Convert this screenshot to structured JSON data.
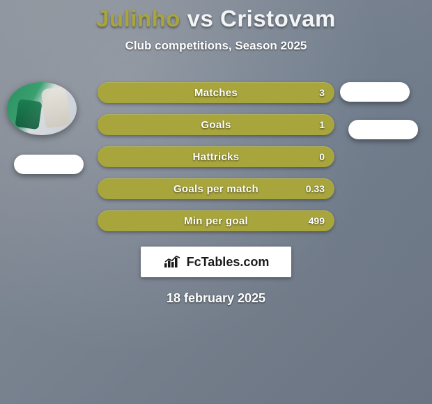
{
  "title": {
    "full": "Julinho vs Cristovam",
    "player1": "Julinho",
    "vs": " vs ",
    "player2": "Cristovam",
    "player1_color": "#a8a53c",
    "player2_color": "#f2f4f6",
    "fontsize": 33
  },
  "subtitle": "Club competitions, Season 2025",
  "stat_bar_color": "#a8a53c",
  "text_color": "#ffffff",
  "background_gradient": [
    "#8a9099",
    "#6a7482"
  ],
  "stats": [
    {
      "label": "Matches",
      "value": "3"
    },
    {
      "label": "Goals",
      "value": "1"
    },
    {
      "label": "Hattricks",
      "value": "0"
    },
    {
      "label": "Goals per match",
      "value": "0.33"
    },
    {
      "label": "Min per goal",
      "value": "499"
    }
  ],
  "logo": {
    "text": "FcTables.com",
    "icon_name": "bar-chart-icon"
  },
  "date": "18 february 2025",
  "badges": {
    "color": "#ffffff",
    "count": 3
  }
}
